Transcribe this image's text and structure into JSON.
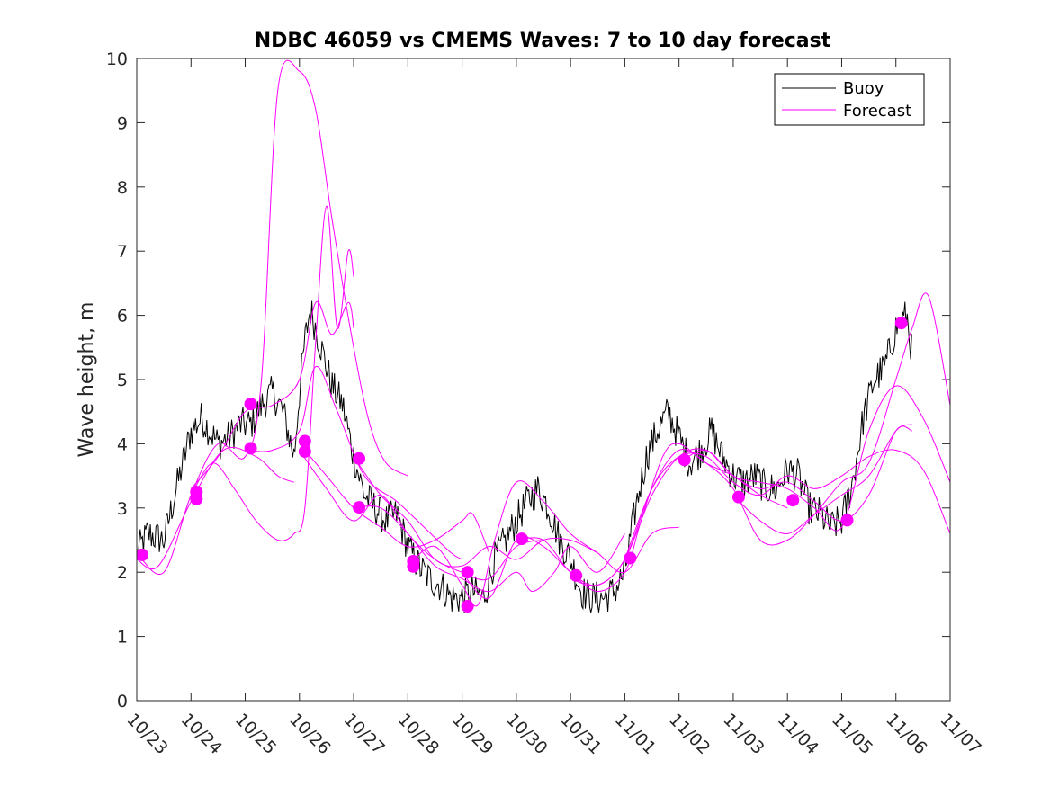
{
  "chart_data": {
    "type": "line",
    "title": "NDBC 46059 vs CMEMS Waves: 7 to 10 day forecast",
    "xlabel": "",
    "ylabel": "Wave height, m",
    "xlim": [
      0,
      15
    ],
    "ylim": [
      0,
      10
    ],
    "grid": false,
    "legend_position": "top-right",
    "x_tick_labels": [
      "10/23",
      "10/24",
      "10/25",
      "10/26",
      "10/27",
      "10/28",
      "10/29",
      "10/30",
      "10/31",
      "11/01",
      "11/02",
      "11/03",
      "11/04",
      "11/05",
      "11/06",
      "11/07"
    ],
    "y_ticks": [
      0,
      1,
      2,
      3,
      4,
      5,
      6,
      7,
      8,
      9,
      10
    ],
    "legend": [
      {
        "name": "Buoy",
        "color": "#000000"
      },
      {
        "name": "Forecast",
        "color": "#ff00ff"
      }
    ],
    "buoy": {
      "name": "Buoy",
      "color": "#000000",
      "x": [
        0,
        0.2,
        0.5,
        0.7,
        1.0,
        1.2,
        1.5,
        1.7,
        1.9,
        2.1,
        2.3,
        2.5,
        2.7,
        2.9,
        3.0,
        3.1,
        3.2,
        3.4,
        3.6,
        3.8,
        4.0,
        4.2,
        4.4,
        4.6,
        4.8,
        5.0,
        5.2,
        5.4,
        5.6,
        5.8,
        6.0,
        6.2,
        6.4,
        6.6,
        6.8,
        7.0,
        7.2,
        7.4,
        7.6,
        7.8,
        8.0,
        8.2,
        8.4,
        8.6,
        8.8,
        9.0,
        9.2,
        9.4,
        9.6,
        9.8,
        10.0,
        10.2,
        10.4,
        10.6,
        10.8,
        11.0,
        11.2,
        11.4,
        11.6,
        11.8,
        12.0,
        12.2,
        12.4,
        12.6,
        12.8,
        13.0,
        13.2,
        13.4,
        13.6,
        13.8,
        14.0,
        14.2,
        14.3
      ],
      "y": [
        2.3,
        2.6,
        2.5,
        3.2,
        4.2,
        4.4,
        4.0,
        4.1,
        4.3,
        4.3,
        4.6,
        4.8,
        4.5,
        3.8,
        4.8,
        5.6,
        6.1,
        5.5,
        4.9,
        4.6,
        3.8,
        3.2,
        3.0,
        2.8,
        2.9,
        2.4,
        2.1,
        1.9,
        1.8,
        1.6,
        1.6,
        1.7,
        1.6,
        2.2,
        2.5,
        2.8,
        3.1,
        3.3,
        3.0,
        2.5,
        2.2,
        1.7,
        1.6,
        1.6,
        1.7,
        2.0,
        3.0,
        3.8,
        4.2,
        4.5,
        4.1,
        3.7,
        3.9,
        4.2,
        3.8,
        3.5,
        3.4,
        3.5,
        3.3,
        3.3,
        3.6,
        3.5,
        3.0,
        2.9,
        2.7,
        2.8,
        3.4,
        4.4,
        5.0,
        5.2,
        5.8,
        6.0,
        5.4
      ]
    },
    "forecast_runs": [
      {
        "x": [
          0.0,
          0.4,
          1.0,
          1.6,
          2.2,
          2.6,
          2.9
        ],
        "y": [
          2.2,
          2.1,
          3.1,
          3.9,
          3.8,
          3.5,
          3.4
        ]
      },
      {
        "x": [
          0.0,
          0.5,
          1.0,
          1.5,
          2.0,
          2.3,
          2.6,
          3.0,
          3.3,
          3.6,
          4.0,
          4.3,
          4.6,
          5.0
        ],
        "y": [
          2.3,
          2.0,
          3.2,
          4.0,
          3.8,
          5.0,
          9.5,
          9.8,
          9.2,
          7.5,
          5.5,
          4.3,
          3.7,
          3.5
        ]
      },
      {
        "x": [
          1.0,
          1.4,
          1.8,
          2.2,
          2.6,
          2.9,
          3.1,
          3.3,
          3.5,
          3.7,
          3.9,
          4.0
        ],
        "y": [
          3.2,
          3.7,
          3.3,
          2.8,
          2.5,
          2.6,
          3.0,
          5.6,
          7.7,
          5.8,
          7.0,
          6.6
        ]
      },
      {
        "x": [
          1.0,
          1.5,
          2.0,
          2.5,
          3.0,
          3.3,
          3.6,
          3.9,
          4.0
        ],
        "y": [
          3.3,
          3.8,
          4.5,
          4.6,
          5.0,
          6.2,
          5.7,
          6.2,
          5.8
        ]
      },
      {
        "x": [
          2.0,
          2.5,
          3.0,
          3.3,
          3.7,
          4.2,
          4.8,
          5.3,
          5.8,
          6.0
        ],
        "y": [
          3.9,
          3.9,
          4.2,
          5.2,
          4.5,
          3.5,
          3.1,
          2.7,
          2.3,
          2.2
        ]
      },
      {
        "x": [
          3.0,
          3.5,
          4.0,
          4.5,
          5.0,
          5.5,
          6.0,
          6.2,
          6.5
        ],
        "y": [
          4.0,
          3.5,
          3.0,
          2.7,
          2.4,
          2.5,
          2.8,
          2.9,
          2.3
        ]
      },
      {
        "x": [
          3.0,
          3.5,
          4.0,
          4.5,
          5.0,
          5.5,
          6.0,
          6.5,
          7.0,
          7.5
        ],
        "y": [
          3.9,
          3.3,
          2.8,
          3.2,
          2.6,
          2.2,
          2.0,
          1.9,
          2.4,
          2.5
        ]
      },
      {
        "x": [
          4.0,
          4.5,
          5.0,
          5.5,
          6.0,
          6.5,
          7.0,
          7.5,
          8.0,
          8.5
        ],
        "y": [
          3.8,
          3.2,
          2.8,
          2.2,
          2.1,
          2.4,
          2.2,
          2.5,
          2.5,
          2.3
        ]
      },
      {
        "x": [
          4.0,
          4.5,
          5.0,
          5.5,
          6.0,
          6.5,
          7.0,
          7.3,
          7.7,
          8.0,
          8.5,
          9.0
        ],
        "y": [
          3.0,
          3.0,
          2.6,
          2.1,
          1.9,
          1.7,
          2.0,
          1.7,
          2.0,
          2.4,
          2.0,
          2.6
        ]
      },
      {
        "x": [
          5.0,
          5.5,
          6.0,
          6.3,
          6.6,
          7.0,
          7.5,
          8.0,
          8.5,
          9.0,
          9.5,
          10.0
        ],
        "y": [
          2.1,
          2.4,
          1.8,
          1.5,
          2.5,
          3.4,
          3.1,
          2.6,
          2.3,
          2.0,
          2.6,
          2.7
        ]
      },
      {
        "x": [
          6.0,
          6.5,
          7.0,
          7.5,
          8.0,
          8.5,
          9.0,
          9.3,
          9.7,
          10.0,
          10.5,
          11.0,
          11.5,
          12.0
        ],
        "y": [
          2.0,
          1.6,
          2.5,
          2.4,
          2.0,
          1.7,
          2.0,
          2.8,
          3.8,
          4.0,
          3.7,
          3.5,
          3.2,
          3.0
        ]
      },
      {
        "x": [
          7.0,
          7.5,
          8.0,
          8.5,
          9.0,
          9.5,
          10.0,
          10.5,
          11.0,
          11.5,
          12.0,
          12.5,
          13.0,
          13.5,
          14.0,
          14.5,
          15.0
        ],
        "y": [
          2.5,
          2.5,
          2.0,
          1.8,
          2.2,
          3.2,
          3.8,
          3.9,
          3.5,
          3.4,
          3.3,
          3.0,
          2.7,
          4.2,
          4.9,
          4.4,
          3.4
        ]
      },
      {
        "x": [
          8.0,
          8.5,
          9.0,
          9.5,
          10.0,
          10.5,
          11.0,
          11.5,
          12.0,
          12.5,
          13.0,
          13.5,
          14.0,
          14.3,
          14.6,
          15.0
        ],
        "y": [
          1.9,
          1.8,
          2.2,
          3.3,
          3.9,
          3.7,
          3.3,
          2.5,
          2.5,
          2.9,
          3.4,
          3.7,
          5.0,
          5.8,
          6.3,
          4.6
        ]
      },
      {
        "x": [
          9.0,
          9.5,
          10.0,
          10.5,
          11.0,
          11.5,
          12.0,
          12.5,
          13.0,
          13.5,
          14.0,
          14.5,
          15.0
        ],
        "y": [
          2.2,
          3.3,
          3.8,
          3.8,
          3.4,
          3.2,
          3.5,
          3.3,
          3.5,
          3.8,
          3.9,
          3.6,
          2.6
        ]
      },
      {
        "x": [
          10.0,
          10.5,
          11.0,
          11.5,
          12.0,
          12.5,
          13.0,
          13.5,
          14.0,
          14.3
        ],
        "y": [
          3.7,
          3.9,
          3.5,
          3.3,
          3.4,
          3.1,
          2.8,
          3.2,
          4.2,
          4.2
        ]
      },
      {
        "x": [
          11.0,
          11.5,
          12.0,
          12.5,
          13.0,
          13.5,
          14.0,
          14.3
        ],
        "y": [
          3.2,
          2.8,
          2.6,
          2.9,
          3.2,
          3.5,
          4.2,
          4.3
        ]
      }
    ],
    "forecast_start_markers": {
      "x": [
        0.1,
        1.1,
        1.1,
        2.1,
        2.1,
        3.1,
        3.1,
        4.1,
        4.1,
        5.1,
        5.1,
        6.1,
        6.1,
        7.1,
        8.1,
        9.1,
        10.1,
        11.1,
        12.1,
        13.1,
        14.1
      ],
      "y": [
        2.27,
        3.25,
        3.14,
        4.62,
        3.93,
        4.04,
        3.88,
        3.77,
        3.01,
        2.17,
        2.09,
        2.0,
        1.47,
        2.52,
        1.95,
        2.22,
        3.75,
        3.17,
        3.12,
        2.81,
        5.88
      ]
    }
  }
}
